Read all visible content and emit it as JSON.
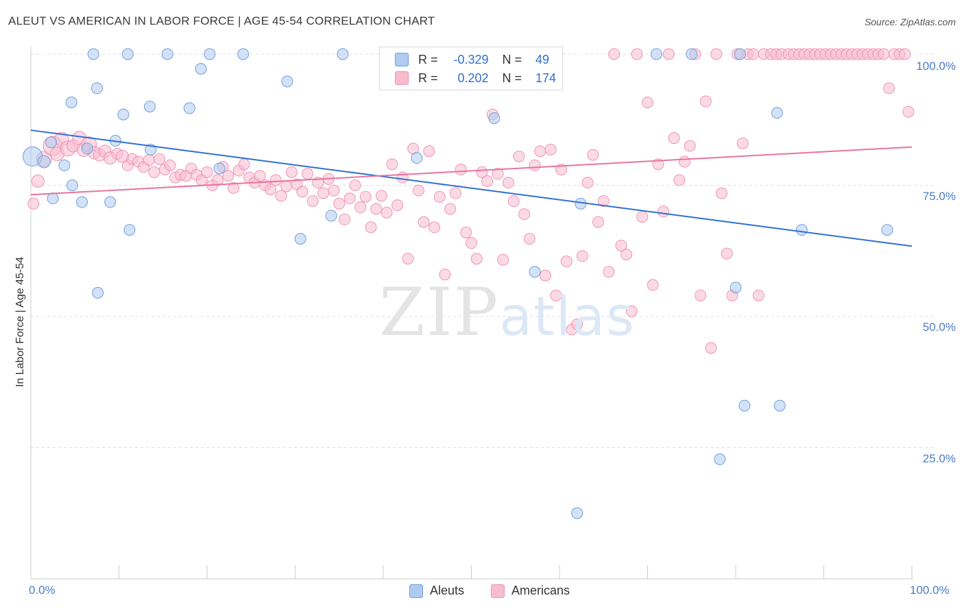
{
  "header": {
    "title": "ALEUT VS AMERICAN IN LABOR FORCE | AGE 45-54 CORRELATION CHART",
    "source": "Source: ZipAtlas.com"
  },
  "legend": {
    "aleut": {
      "r_label": "R =",
      "r_value": "-0.329",
      "n_label": "N =",
      "n_value": "49"
    },
    "american": {
      "r_label": "R =",
      "r_value": "0.202",
      "n_label": "N =",
      "n_value": "174"
    }
  },
  "bottom_legend": {
    "aleut": "Aleuts",
    "american": "Americans"
  },
  "watermark": {
    "zip": "ZIP",
    "atlas": "atlas"
  },
  "colors": {
    "aleut_fill": "#aecbf0",
    "aleut_stroke": "#6f9fdc",
    "aleut_line": "#2f6fd0",
    "american_fill": "#f8bcd0",
    "american_stroke": "#ee94b4",
    "american_line": "#e8739c",
    "grid": "#dddddd",
    "tick_text": "#4a7cc7"
  },
  "chart_data": {
    "type": "scatter",
    "title": "ALEUT VS AMERICAN IN LABOR FORCE | AGE 45-54 CORRELATION CHART",
    "xlabel": "",
    "ylabel": "In Labor Force | Age 45-54",
    "xlim": [
      0,
      100
    ],
    "ylim": [
      0,
      100
    ],
    "x_tick_labels": [
      "0.0%",
      "100.0%"
    ],
    "y_ticks": [
      25,
      50,
      75,
      100
    ],
    "y_tick_labels": [
      "25.0%",
      "50.0%",
      "75.0%",
      "100.0%"
    ],
    "grid": "horizontal dashed",
    "legend_position": "top-center",
    "series": [
      {
        "name": "Aleuts",
        "r": -0.329,
        "n": 49,
        "trend": {
          "x": [
            0,
            100
          ],
          "y": [
            85.5,
            63.4
          ]
        },
        "points": [
          [
            0.2,
            80.5,
            14
          ],
          [
            1.5,
            79.5,
            9
          ],
          [
            2.3,
            83.2,
            8
          ],
          [
            2.5,
            72.5,
            8
          ],
          [
            3.8,
            78.8,
            8
          ],
          [
            4.6,
            90.8,
            8
          ],
          [
            4.7,
            75.0,
            8
          ],
          [
            5.8,
            71.8,
            8
          ],
          [
            6.4,
            82.0,
            8
          ],
          [
            7.1,
            100,
            8
          ],
          [
            7.5,
            93.5,
            8
          ],
          [
            7.6,
            54.5,
            8
          ],
          [
            9.0,
            71.8,
            8
          ],
          [
            9.6,
            83.5,
            8
          ],
          [
            10.5,
            88.5,
            8
          ],
          [
            11.0,
            100,
            8
          ],
          [
            11.2,
            66.5,
            8
          ],
          [
            13.5,
            90.0,
            8
          ],
          [
            13.6,
            81.8,
            8
          ],
          [
            15.5,
            100,
            8
          ],
          [
            18.0,
            89.7,
            8
          ],
          [
            19.3,
            97.2,
            8
          ],
          [
            20.3,
            100,
            8
          ],
          [
            21.4,
            78.2,
            8
          ],
          [
            24.1,
            100,
            8
          ],
          [
            29.1,
            94.8,
            8
          ],
          [
            30.6,
            64.8,
            8
          ],
          [
            34.1,
            69.2,
            8
          ],
          [
            35.4,
            100,
            8
          ],
          [
            43.8,
            80.2,
            8
          ],
          [
            52.6,
            87.8,
            8
          ],
          [
            57.2,
            58.5,
            8
          ],
          [
            62.0,
            12.5,
            8
          ],
          [
            62.4,
            71.5,
            8
          ],
          [
            71.0,
            100,
            8
          ],
          [
            75.0,
            100,
            8
          ],
          [
            78.2,
            22.8,
            8
          ],
          [
            80.0,
            55.5,
            8
          ],
          [
            80.5,
            100,
            8
          ],
          [
            81.0,
            33.0,
            8
          ],
          [
            84.7,
            88.8,
            8
          ],
          [
            85.0,
            33.0,
            8
          ],
          [
            87.5,
            66.5,
            8
          ],
          [
            97.2,
            66.5,
            8
          ]
        ]
      },
      {
        "name": "Americans",
        "r": 0.202,
        "n": 174,
        "trend": {
          "x": [
            0,
            100
          ],
          "y": [
            73.2,
            82.3
          ]
        },
        "points": [
          [
            0.3,
            71.5,
            8
          ],
          [
            0.8,
            75.8,
            9
          ],
          [
            1.5,
            80.0,
            11
          ],
          [
            2.5,
            82.5,
            14
          ],
          [
            3.0,
            81.0,
            10
          ],
          [
            3.5,
            83.8,
            10
          ],
          [
            4.2,
            82.0,
            11
          ],
          [
            4.8,
            82.5,
            9
          ],
          [
            5.5,
            84.0,
            10
          ],
          [
            6.0,
            81.8,
            10
          ],
          [
            6.6,
            82.8,
            11
          ],
          [
            7.2,
            81.2,
            9
          ],
          [
            7.8,
            80.8,
            9
          ],
          [
            8.4,
            81.5,
            9
          ],
          [
            9.0,
            80.2,
            9
          ],
          [
            9.8,
            81.0,
            8
          ],
          [
            10.4,
            80.5,
            9
          ],
          [
            11.0,
            78.8,
            8
          ],
          [
            11.5,
            80.0,
            8
          ],
          [
            12.2,
            79.5,
            8
          ],
          [
            12.8,
            78.5,
            8
          ],
          [
            13.4,
            79.8,
            8
          ],
          [
            14.0,
            77.5,
            8
          ],
          [
            14.6,
            80.0,
            8
          ],
          [
            15.2,
            78.0,
            8
          ],
          [
            15.8,
            78.8,
            8
          ],
          [
            16.4,
            76.5,
            8
          ],
          [
            17.0,
            77.0,
            8
          ],
          [
            17.6,
            76.8,
            8
          ],
          [
            18.2,
            78.2,
            8
          ],
          [
            18.8,
            77.0,
            8
          ],
          [
            19.4,
            76.0,
            8
          ],
          [
            20.0,
            77.5,
            8
          ],
          [
            20.6,
            75.0,
            8
          ],
          [
            21.2,
            76.0,
            8
          ],
          [
            21.8,
            78.5,
            8
          ],
          [
            22.4,
            76.8,
            8
          ],
          [
            23.0,
            74.5,
            8
          ],
          [
            23.6,
            77.8,
            8
          ],
          [
            24.2,
            79.0,
            8
          ],
          [
            24.8,
            76.5,
            8
          ],
          [
            25.4,
            75.5,
            8
          ],
          [
            26.0,
            76.8,
            8
          ],
          [
            26.6,
            75.0,
            8
          ],
          [
            27.2,
            74.2,
            8
          ],
          [
            27.8,
            76.0,
            8
          ],
          [
            28.4,
            73.0,
            8
          ],
          [
            29.0,
            74.8,
            8
          ],
          [
            29.6,
            77.5,
            8
          ],
          [
            30.2,
            75.2,
            8
          ],
          [
            30.8,
            73.8,
            8
          ],
          [
            31.4,
            77.2,
            8
          ],
          [
            32.0,
            72.0,
            8
          ],
          [
            32.6,
            75.5,
            8
          ],
          [
            33.2,
            73.5,
            8
          ],
          [
            33.8,
            76.2,
            8
          ],
          [
            34.4,
            74.0,
            8
          ],
          [
            35.0,
            71.5,
            8
          ],
          [
            35.6,
            68.5,
            8
          ],
          [
            36.2,
            72.5,
            8
          ],
          [
            36.8,
            75.0,
            8
          ],
          [
            37.4,
            70.8,
            8
          ],
          [
            38.0,
            72.8,
            8
          ],
          [
            38.6,
            67.0,
            8
          ],
          [
            39.2,
            70.5,
            8
          ],
          [
            39.8,
            73.0,
            8
          ],
          [
            40.4,
            69.8,
            8
          ],
          [
            41.0,
            79.0,
            8
          ],
          [
            41.6,
            71.2,
            8
          ],
          [
            42.2,
            76.5,
            8
          ],
          [
            42.8,
            61.0,
            8
          ],
          [
            43.4,
            82.0,
            8
          ],
          [
            44.0,
            74.0,
            8
          ],
          [
            44.6,
            68.0,
            8
          ],
          [
            45.2,
            81.5,
            8
          ],
          [
            45.8,
            67.0,
            8
          ],
          [
            46.4,
            72.8,
            8
          ],
          [
            47.0,
            58.0,
            8
          ],
          [
            47.6,
            70.5,
            8
          ],
          [
            48.2,
            73.5,
            8
          ],
          [
            48.8,
            78.0,
            8
          ],
          [
            49.4,
            66.0,
            8
          ],
          [
            50.0,
            64.0,
            8
          ],
          [
            50.6,
            61.0,
            8
          ],
          [
            51.2,
            77.5,
            8
          ],
          [
            51.8,
            75.8,
            8
          ],
          [
            52.4,
            88.5,
            8
          ],
          [
            53.0,
            77.2,
            8
          ],
          [
            53.6,
            60.8,
            8
          ],
          [
            54.2,
            75.5,
            8
          ],
          [
            54.8,
            72.0,
            8
          ],
          [
            55.4,
            80.5,
            8
          ],
          [
            56.0,
            69.5,
            8
          ],
          [
            56.6,
            64.8,
            8
          ],
          [
            57.2,
            78.8,
            8
          ],
          [
            57.8,
            81.5,
            8
          ],
          [
            58.4,
            57.8,
            8
          ],
          [
            59.0,
            81.8,
            8
          ],
          [
            59.6,
            54.0,
            8
          ],
          [
            60.2,
            78.0,
            8
          ],
          [
            60.8,
            60.5,
            8
          ],
          [
            61.4,
            47.5,
            8
          ],
          [
            62.0,
            48.5,
            8
          ],
          [
            62.6,
            61.5,
            8
          ],
          [
            63.2,
            75.5,
            8
          ],
          [
            63.8,
            80.8,
            8
          ],
          [
            64.4,
            68.0,
            8
          ],
          [
            65.0,
            72.0,
            8
          ],
          [
            65.6,
            58.5,
            8
          ],
          [
            66.2,
            100,
            8
          ],
          [
            67.0,
            63.5,
            8
          ],
          [
            67.6,
            61.8,
            8
          ],
          [
            68.2,
            51.0,
            8
          ],
          [
            68.8,
            100,
            8
          ],
          [
            69.4,
            69.0,
            8
          ],
          [
            70.0,
            90.8,
            8
          ],
          [
            70.6,
            56.0,
            8
          ],
          [
            71.2,
            79.0,
            8
          ],
          [
            71.8,
            70.0,
            8
          ],
          [
            72.4,
            100,
            8
          ],
          [
            73.0,
            84.0,
            8
          ],
          [
            73.6,
            76.0,
            8
          ],
          [
            74.2,
            79.5,
            8
          ],
          [
            74.8,
            82.5,
            8
          ],
          [
            75.4,
            100,
            8
          ],
          [
            76.0,
            54.0,
            8
          ],
          [
            76.6,
            91.0,
            8
          ],
          [
            77.2,
            44.0,
            8
          ],
          [
            77.8,
            100,
            8
          ],
          [
            78.4,
            73.5,
            8
          ],
          [
            79.0,
            62.0,
            8
          ],
          [
            79.6,
            54.0,
            8
          ],
          [
            80.2,
            100,
            8
          ],
          [
            80.8,
            83.0,
            8
          ],
          [
            81.4,
            100,
            8
          ],
          [
            82.0,
            100,
            8
          ],
          [
            82.6,
            54.0,
            8
          ],
          [
            83.2,
            100,
            8
          ],
          [
            84.0,
            100,
            8
          ],
          [
            84.6,
            100,
            8
          ],
          [
            85.2,
            100,
            8
          ],
          [
            86.0,
            100,
            8
          ],
          [
            86.6,
            100,
            8
          ],
          [
            87.2,
            100,
            8
          ],
          [
            87.8,
            100,
            8
          ],
          [
            88.4,
            100,
            8
          ],
          [
            89.0,
            100,
            8
          ],
          [
            89.6,
            100,
            8
          ],
          [
            90.2,
            100,
            8
          ],
          [
            90.8,
            100,
            8
          ],
          [
            91.4,
            100,
            8
          ],
          [
            92.0,
            100,
            8
          ],
          [
            92.6,
            100,
            8
          ],
          [
            93.2,
            100,
            8
          ],
          [
            93.8,
            100,
            8
          ],
          [
            94.4,
            100,
            8
          ],
          [
            95.0,
            100,
            8
          ],
          [
            95.6,
            100,
            8
          ],
          [
            96.2,
            100,
            8
          ],
          [
            96.8,
            100,
            8
          ],
          [
            97.4,
            93.5,
            8
          ],
          [
            98.0,
            100,
            8
          ],
          [
            98.6,
            100,
            8
          ],
          [
            99.2,
            100,
            8
          ],
          [
            99.6,
            89.0,
            8
          ]
        ]
      }
    ]
  }
}
